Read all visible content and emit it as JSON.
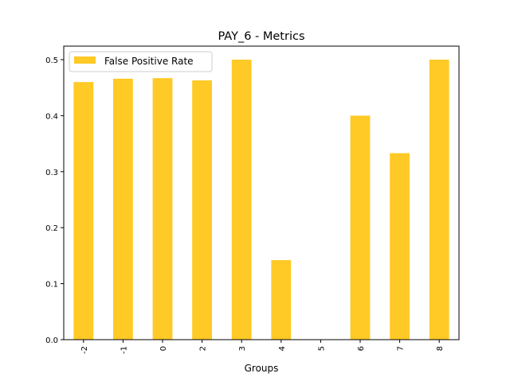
{
  "chart_data": {
    "type": "bar",
    "title": "PAY_6 - Metrics",
    "xlabel": "Groups",
    "ylabel": "",
    "categories": [
      "-2",
      "-1",
      "0",
      "2",
      "3",
      "4",
      "5",
      "6",
      "7",
      "8"
    ],
    "series": [
      {
        "name": "False Positive Rate",
        "color": "#ffc926",
        "values": [
          0.46,
          0.466,
          0.467,
          0.463,
          0.5,
          0.142,
          0.0,
          0.4,
          0.333,
          0.5
        ]
      }
    ],
    "ylim": [
      0,
      0.525
    ],
    "yticks": [
      "0.0",
      "0.1",
      "0.2",
      "0.3",
      "0.4",
      "0.5"
    ],
    "grid": false,
    "legend": "top-left"
  }
}
